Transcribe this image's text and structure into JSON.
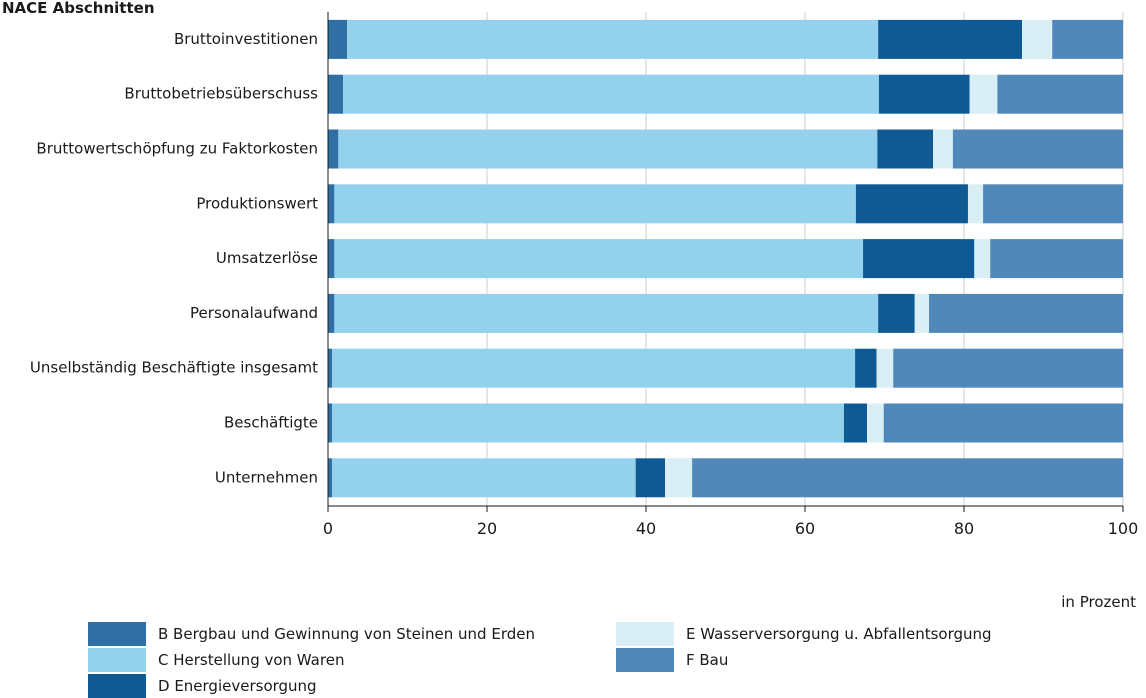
{
  "chart_data": {
    "type": "bar",
    "orientation": "horizontal",
    "stacked": true,
    "title": "NACE Abschnitten",
    "xlabel": "in Prozent",
    "xlim": [
      0,
      100
    ],
    "xticks": [
      0,
      20,
      40,
      60,
      80,
      100
    ],
    "grid": "vertical",
    "legend_position": "bottom",
    "categories": [
      "Bruttoinvestitionen",
      "Bruttobetriebsüberschuss",
      "Bruttowertschöpfung zu Faktorkosten",
      "Produktionswert",
      "Umsatzerlöse",
      "Personalaufwand",
      "Unselbständig Beschäftigte insgesamt",
      "Beschäftigte",
      "Unternehmen"
    ],
    "series": [
      {
        "name": "B Bergbau und Gewinnung von Steinen und Erden",
        "color": "#2f6fa3",
        "values": [
          2.4,
          1.9,
          1.3,
          0.8,
          0.8,
          0.8,
          0.5,
          0.5,
          0.5
        ]
      },
      {
        "name": "C Herstellung von Waren",
        "color": "#93d1ec",
        "values": [
          66.8,
          67.4,
          67.8,
          65.6,
          66.5,
          68.4,
          65.8,
          64.4,
          38.2
        ]
      },
      {
        "name": "D Energieversorgung",
        "color": "#0f5a93",
        "values": [
          18.1,
          11.4,
          7.0,
          14.1,
          14.0,
          4.6,
          2.7,
          2.9,
          3.7
        ]
      },
      {
        "name": "E Wasserversorgung u. Abfallentsorgung",
        "color": "#daeff5",
        "values": [
          3.8,
          3.5,
          2.5,
          1.9,
          2.0,
          1.8,
          2.1,
          2.1,
          3.4
        ]
      },
      {
        "name": "F Bau",
        "color": "#5188ba",
        "values": [
          8.9,
          15.8,
          21.4,
          17.6,
          16.7,
          24.4,
          28.9,
          30.1,
          54.2
        ]
      }
    ]
  }
}
